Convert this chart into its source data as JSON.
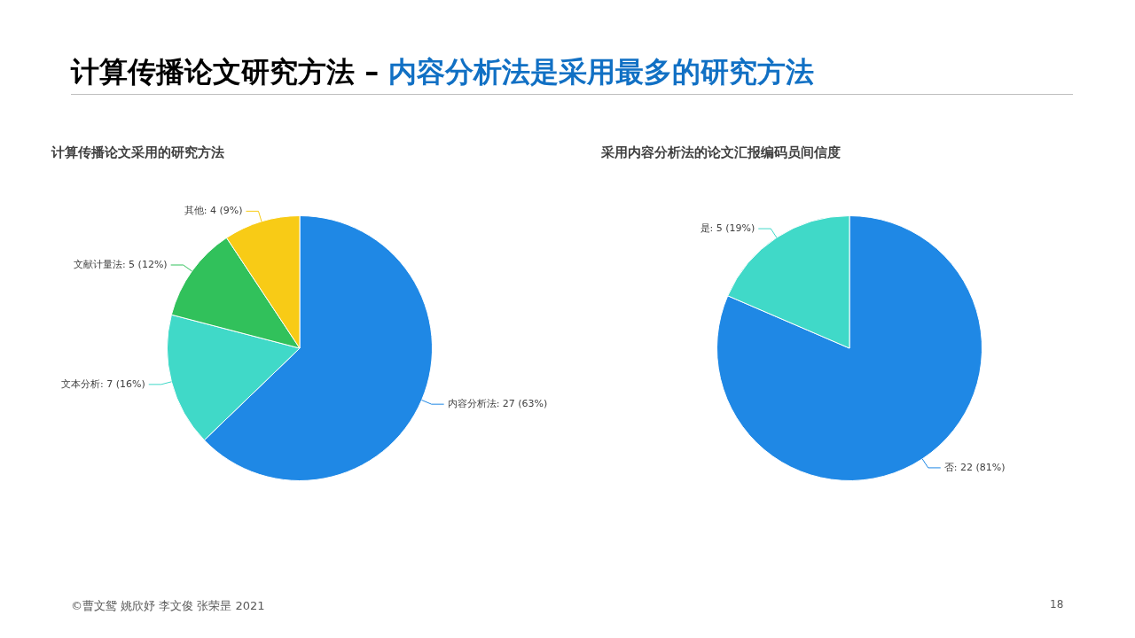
{
  "chart_data": [
    {
      "type": "pie",
      "title": "计算传播论文采用的研究方法",
      "categories": [
        "内容分析法",
        "文本分析",
        "文献计量法",
        "其他"
      ],
      "values": [
        27,
        7,
        5,
        4
      ],
      "colors": [
        "#1f88e5",
        "#40d9c8",
        "#31c15b",
        "#f8cb16"
      ],
      "value_labels": [
        "27 (63%)",
        "7 (16%)",
        "5 (12%)",
        "4 (9%)"
      ],
      "annotations": [
        "计算传播论文研究方法 –",
        "内容分析法是采用最多的研究方法",
        "©曹文鸳 姚欣妤 李文俊 张荣昰 2021",
        "18"
      ]
    },
    {
      "type": "pie",
      "title": "采用内容分析法的论文汇报编码员间信度",
      "categories": [
        "否",
        "是"
      ],
      "values": [
        22,
        5
      ],
      "colors": [
        "#1f88e5",
        "#40d9c8"
      ],
      "value_labels": [
        "22 (81%)",
        "5 (19%)"
      ]
    }
  ]
}
